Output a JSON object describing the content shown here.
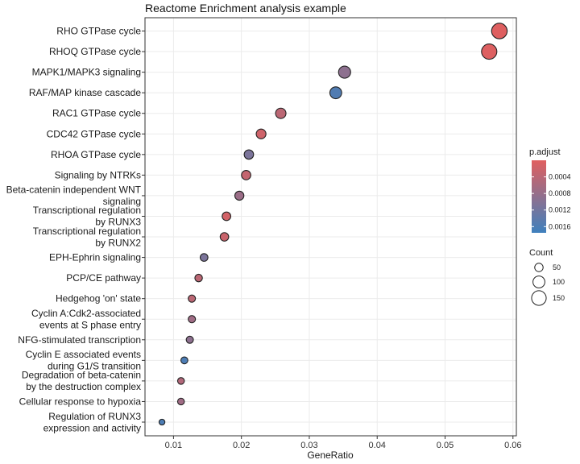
{
  "chart_data": {
    "type": "scatter",
    "title": "Reactome Enrichment analysis example",
    "xlabel": "GeneRatio",
    "ylabel": "",
    "xlim": [
      0.0058,
      0.0605
    ],
    "xticks": [
      0.01,
      0.02,
      0.03,
      0.04,
      0.05,
      0.06
    ],
    "grid": true,
    "legend_placement": "right",
    "points": [
      {
        "term": [
          "RHO GTPase cycle"
        ],
        "gene_ratio": 0.058,
        "count": 170,
        "p_adjust": 2e-05
      },
      {
        "term": [
          "RHOQ GTPase cycle"
        ],
        "gene_ratio": 0.0565,
        "count": 165,
        "p_adjust": 3e-05
      },
      {
        "term": [
          "MAPK1/MAPK3 signaling"
        ],
        "gene_ratio": 0.0352,
        "count": 103,
        "p_adjust": 0.0009
      },
      {
        "term": [
          "RAF/MAP kinase cascade"
        ],
        "gene_ratio": 0.0339,
        "count": 99,
        "p_adjust": 0.00155
      },
      {
        "term": [
          "RAC1 GTPase cycle"
        ],
        "gene_ratio": 0.0258,
        "count": 76,
        "p_adjust": 0.0004
      },
      {
        "term": [
          "CDC42 GTPase cycle"
        ],
        "gene_ratio": 0.0229,
        "count": 67,
        "p_adjust": 0.0002
      },
      {
        "term": [
          "RHOA GTPase cycle"
        ],
        "gene_ratio": 0.0211,
        "count": 62,
        "p_adjust": 0.0011
      },
      {
        "term": [
          "Signaling by NTRKs"
        ],
        "gene_ratio": 0.0207,
        "count": 61,
        "p_adjust": 0.0003
      },
      {
        "term": [
          "Beta-catenin independent WNT",
          "signaling"
        ],
        "gene_ratio": 0.0197,
        "count": 58,
        "p_adjust": 0.00075
      },
      {
        "term": [
          "Transcriptional regulation",
          "by RUNX3"
        ],
        "gene_ratio": 0.0178,
        "count": 52,
        "p_adjust": 0.00015
      },
      {
        "term": [
          "Transcriptional regulation",
          "by RUNX2"
        ],
        "gene_ratio": 0.0175,
        "count": 51,
        "p_adjust": 0.00025
      },
      {
        "term": [
          "EPH-Ephrin signaling"
        ],
        "gene_ratio": 0.0145,
        "count": 42,
        "p_adjust": 0.0011
      },
      {
        "term": [
          "PCP/CE pathway"
        ],
        "gene_ratio": 0.0137,
        "count": 40,
        "p_adjust": 0.0004
      },
      {
        "term": [
          "Hedgehog 'on' state"
        ],
        "gene_ratio": 0.0127,
        "count": 37,
        "p_adjust": 0.0004
      },
      {
        "term": [
          "Cyclin A:Cdk2-associated",
          "events at S phase entry"
        ],
        "gene_ratio": 0.0127,
        "count": 37,
        "p_adjust": 0.0007
      },
      {
        "term": [
          "NFG-stimulated transcription"
        ],
        "gene_ratio": 0.0124,
        "count": 36,
        "p_adjust": 0.0009
      },
      {
        "term": [
          "Cyclin E associated events",
          "during G1/S transition"
        ],
        "gene_ratio": 0.0116,
        "count": 34,
        "p_adjust": 0.0016
      },
      {
        "term": [
          "Degradation of beta-catenin",
          "by the destruction complex"
        ],
        "gene_ratio": 0.0111,
        "count": 32,
        "p_adjust": 0.0005
      },
      {
        "term": [
          "Cellular response to hypoxia"
        ],
        "gene_ratio": 0.0111,
        "count": 32,
        "p_adjust": 0.0007
      },
      {
        "term": [
          "Regulation of RUNX3",
          "expression and activity"
        ],
        "gene_ratio": 0.0083,
        "count": 24,
        "p_adjust": 0.0016
      }
    ],
    "color_legend": {
      "title": "p.adjust",
      "range": [
        0.0,
        0.00175
      ],
      "ticks": [
        "0.0004",
        "0.0008",
        "0.0012",
        "0.0016"
      ],
      "tick_values": [
        0.0004,
        0.0008,
        0.0012,
        0.0016
      ],
      "low_color": "#e05f5f",
      "high_color": "#3f80bd"
    },
    "size_legend": {
      "title": "Count",
      "values": [
        50,
        100,
        150
      ],
      "labels": [
        "50",
        "100",
        "150"
      ]
    }
  }
}
